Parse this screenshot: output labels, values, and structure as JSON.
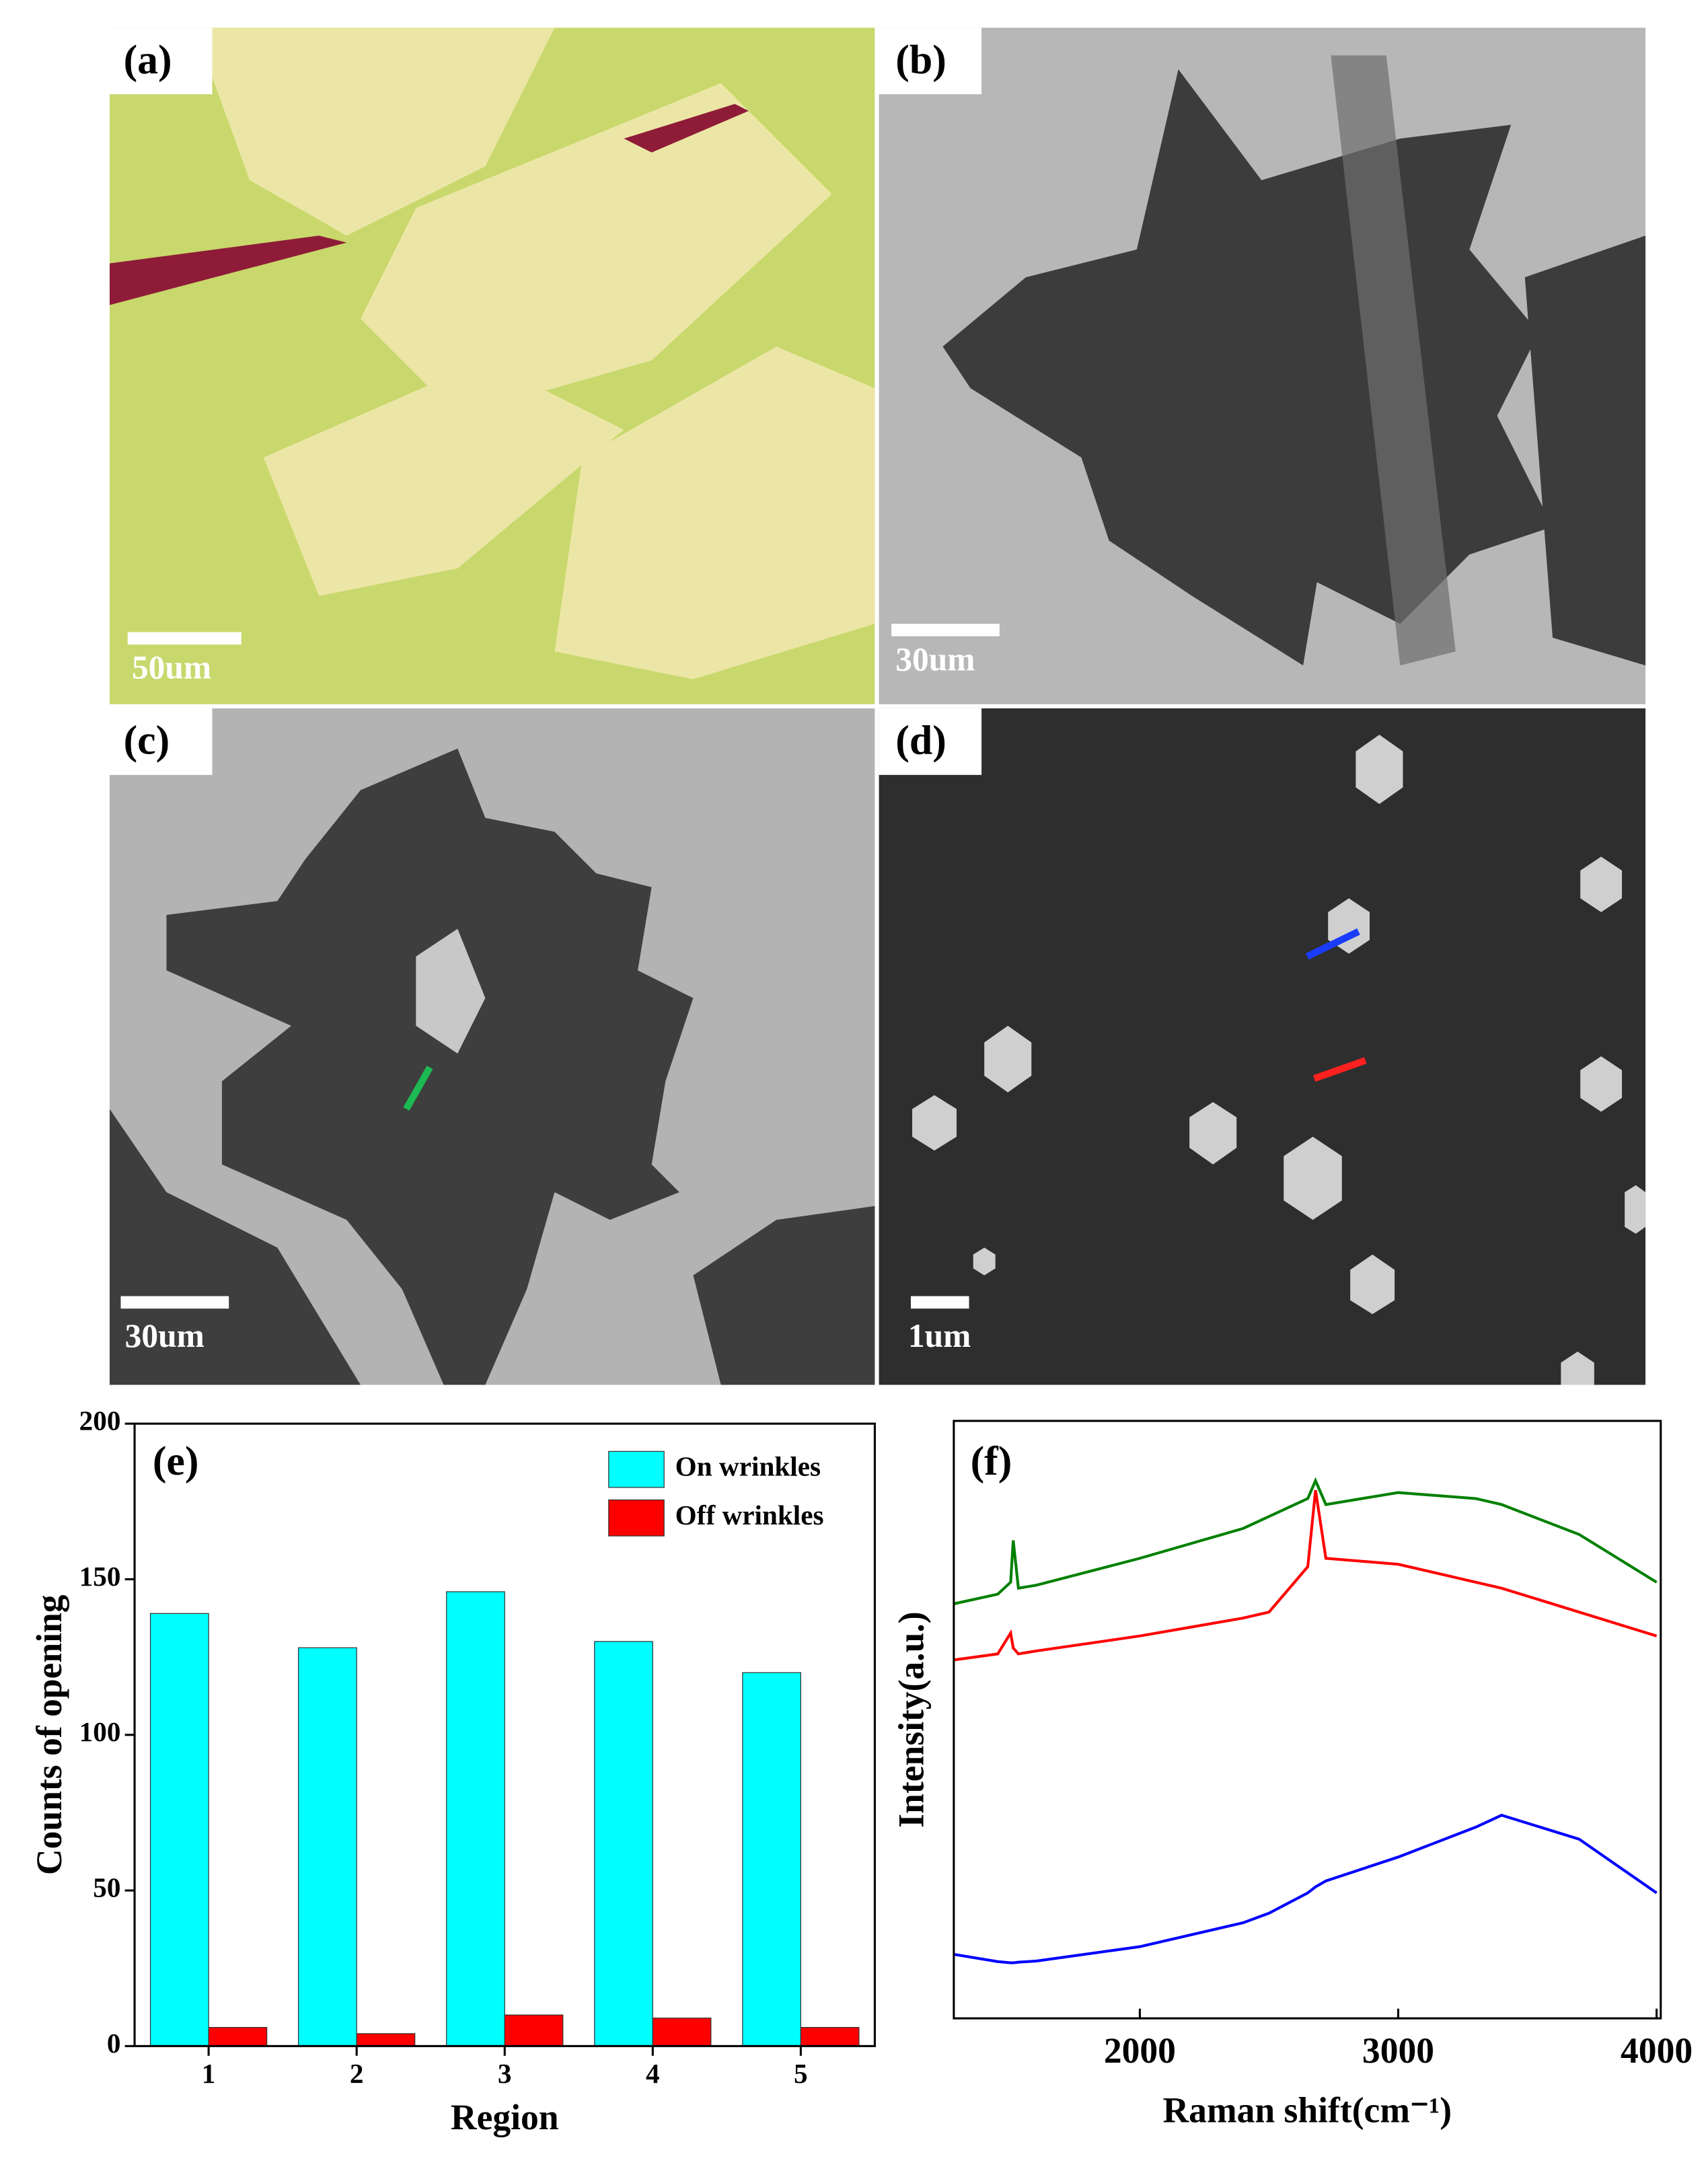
{
  "panels": [
    {
      "label": "(a)",
      "scale_bar": "50um"
    },
    {
      "label": "(b)",
      "scale_bar": "30um"
    },
    {
      "label": "(c)",
      "scale_bar": "30um"
    },
    {
      "label": "(d)",
      "scale_bar": "1um"
    }
  ],
  "chart_data": [
    {
      "type": "bar",
      "title": "(e)",
      "xlabel": "Region",
      "ylabel": "Counts of opening",
      "categories": [
        "1",
        "2",
        "3",
        "4",
        "5"
      ],
      "series": [
        {
          "name": "On wrinkles",
          "color": "#00ffff",
          "values": [
            139,
            128,
            146,
            130,
            120
          ]
        },
        {
          "name": "Off wrinkles",
          "color": "#ff0000",
          "values": [
            6,
            4,
            10,
            9,
            6
          ]
        }
      ],
      "ylim": [
        0,
        200
      ],
      "yticks": [
        0,
        50,
        100,
        150,
        200
      ],
      "legend": "upper-right"
    },
    {
      "type": "line",
      "title": "(f)",
      "xlabel": "Raman shift(cm⁻¹)",
      "ylabel": "Intensity(a.u.)",
      "x": [
        1282,
        1450,
        1500,
        1510,
        1530,
        1600,
        2000,
        2400,
        2500,
        2650,
        2680,
        2720,
        3000,
        3300,
        3400,
        3700,
        4000
      ],
      "series": [
        {
          "color": "#008000",
          "values": [
            69.4,
            71,
            73,
            80,
            72,
            72.5,
            77,
            82,
            84,
            87,
            90,
            86,
            88,
            87,
            86,
            81,
            73
          ]
        },
        {
          "color": "#ff0000",
          "values": [
            60,
            61,
            64.5,
            62,
            61,
            61.5,
            64,
            67,
            68,
            75.6,
            88.4,
            77,
            76,
            73,
            72,
            68,
            64
          ]
        },
        {
          "color": "#0000ff",
          "values": [
            10.7,
            9.5,
            9.3,
            9.3,
            9.4,
            9.6,
            12,
            16,
            17.6,
            21,
            22,
            23,
            27,
            32,
            34,
            30,
            21
          ]
        }
      ],
      "xlim": [
        1280,
        4016
      ],
      "xticks": [
        2000,
        3000,
        4000
      ],
      "ylim": [
        0,
        100
      ]
    }
  ]
}
